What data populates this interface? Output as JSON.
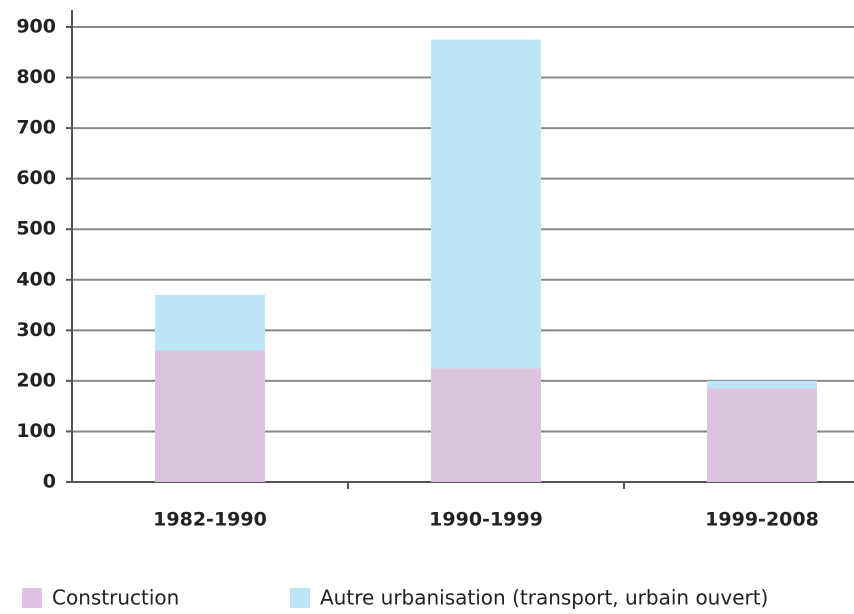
{
  "chart_data": {
    "type": "stacked_bar",
    "categories": [
      "1982-1990",
      "1990-1999",
      "1999-2008"
    ],
    "series": [
      {
        "name": "Construction",
        "color": "#dcc3df",
        "values": [
          260,
          225,
          185
        ]
      },
      {
        "name": "Autre urbanisation (transport, urbain ouvert)",
        "color": "#bde5f6",
        "values": [
          110,
          650,
          15
        ]
      }
    ],
    "ylim": [
      0,
      900
    ],
    "yticks": [
      0,
      100,
      200,
      300,
      400,
      500,
      600,
      700,
      800,
      900
    ],
    "grid": true,
    "legend": "bottom"
  }
}
